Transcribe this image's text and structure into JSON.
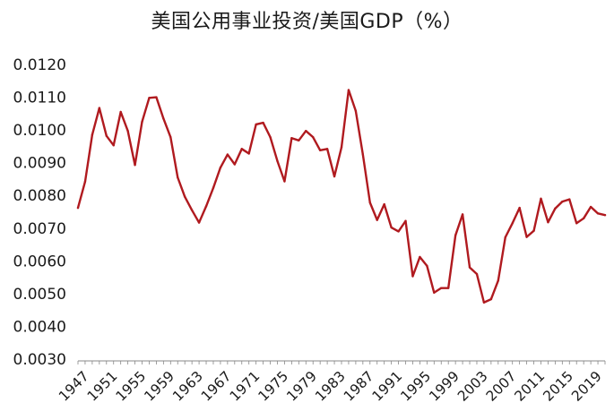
{
  "colors": {
    "line": "#b01a1f",
    "axis": "#888888",
    "text": "#1a1a1a",
    "background": "#ffffff"
  },
  "chart_data": {
    "type": "line",
    "title": "美国公用事业投资/美国GDP（%）",
    "xlabel": "",
    "ylabel": "",
    "grid": false,
    "legend": "none",
    "xlim": [
      1947,
      2021
    ],
    "ylim": [
      0.003,
      0.012
    ],
    "ytick_labels": [
      "0.0030",
      "0.0040",
      "0.0050",
      "0.0060",
      "0.0070",
      "0.0080",
      "0.0090",
      "0.0100",
      "0.0110",
      "0.0120"
    ],
    "xtick_labels": [
      "1947",
      "1951",
      "1955",
      "1959",
      "1963",
      "1967",
      "1971",
      "1975",
      "1979",
      "1983",
      "1987",
      "1991",
      "1995",
      "1999",
      "2003",
      "2007",
      "2011",
      "2015",
      "2019"
    ],
    "series": [
      {
        "name": "美国公用事业投资/美国GDP",
        "x": [
          1947,
          1948,
          1949,
          1950,
          1951,
          1952,
          1953,
          1954,
          1955,
          1956,
          1957,
          1958,
          1959,
          1960,
          1961,
          1962,
          1963,
          1964,
          1965,
          1966,
          1967,
          1968,
          1969,
          1970,
          1971,
          1972,
          1973,
          1974,
          1975,
          1976,
          1977,
          1978,
          1979,
          1980,
          1981,
          1982,
          1983,
          1984,
          1985,
          1986,
          1987,
          1988,
          1989,
          1990,
          1991,
          1992,
          1993,
          1994,
          1995,
          1996,
          1997,
          1998,
          1999,
          2000,
          2001,
          2002,
          2003,
          2004,
          2005,
          2006,
          2007,
          2008,
          2009,
          2010,
          2011,
          2012,
          2013,
          2014,
          2015,
          2016,
          2017,
          2018,
          2019,
          2020,
          2021
        ],
        "y": [
          0.00762,
          0.00842,
          0.00985,
          0.01067,
          0.00982,
          0.00953,
          0.01055,
          0.00997,
          0.00893,
          0.01025,
          0.01098,
          0.011,
          0.01035,
          0.00978,
          0.00855,
          0.00796,
          0.00755,
          0.00717,
          0.00767,
          0.00823,
          0.00885,
          0.00925,
          0.00895,
          0.00942,
          0.00928,
          0.01017,
          0.01022,
          0.00978,
          0.00905,
          0.00843,
          0.00975,
          0.00968,
          0.00997,
          0.00978,
          0.00938,
          0.00942,
          0.00858,
          0.00947,
          0.01122,
          0.01058,
          0.00925,
          0.00778,
          0.00725,
          0.00773,
          0.00702,
          0.0069,
          0.00722,
          0.00553,
          0.00612,
          0.00585,
          0.00503,
          0.00517,
          0.00517,
          0.00678,
          0.00742,
          0.0058,
          0.0056,
          0.00473,
          0.00483,
          0.0054,
          0.00672,
          0.00715,
          0.00762,
          0.00673,
          0.00692,
          0.0079,
          0.00718,
          0.0076,
          0.00781,
          0.00788,
          0.00715,
          0.0073,
          0.00765,
          0.00745,
          0.0074
        ]
      }
    ]
  }
}
